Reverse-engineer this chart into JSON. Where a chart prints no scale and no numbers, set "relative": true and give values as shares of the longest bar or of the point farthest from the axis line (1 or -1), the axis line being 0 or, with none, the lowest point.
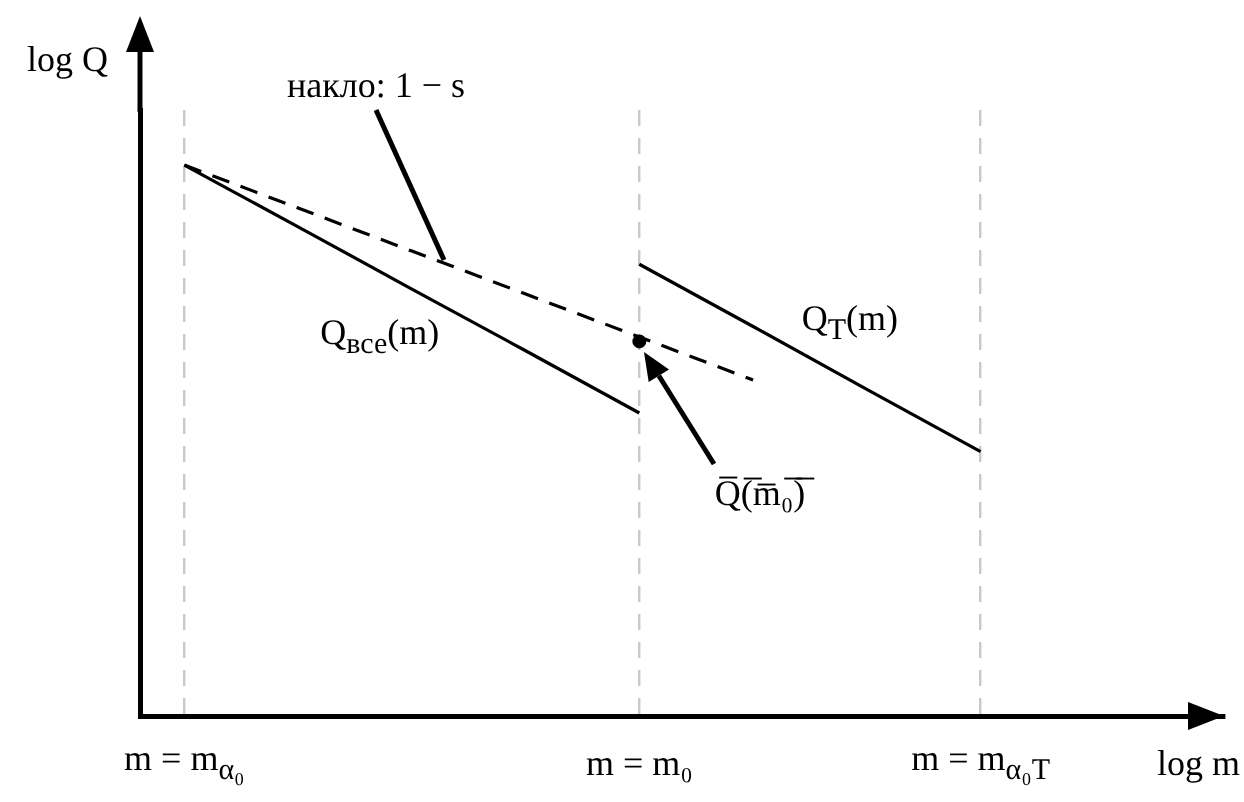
{
  "chart_data": {
    "type": "line",
    "xlabel": "log m",
    "ylabel": "log Q",
    "relative": true,
    "grid": "x",
    "categories": [
      "m = m$_{α₀}$",
      null,
      null,
      null,
      "m = m₀",
      null,
      null,
      "m = m$_{α₀T}$"
    ],
    "series": [
      {
        "name": "Q$_{все}$(m)",
        "color": "#000000",
        "values": [
          1,
          0.888,
          0.775,
          0.663,
          0.55,
          null,
          null,
          null
        ],
        "marker": "none",
        "line_style": "solid"
      },
      {
        "color": "#000000",
        "values": [
          1,
          0.922,
          0.844,
          0.766,
          0.688,
          0.61,
          null,
          null
        ],
        "marker": "none",
        "line_style": "dashed"
      },
      {
        "name": "Q$_{T}$(m)",
        "color": "#000000",
        "values": [
          null,
          null,
          null,
          null,
          0.82,
          0.707,
          0.593,
          0.48
        ],
        "marker": "none",
        "line_style": "solid"
      },
      {
        "type": "scatter",
        "color": "#000000",
        "values": [
          null,
          null,
          null,
          null,
          0.68,
          null,
          null,
          null
        ],
        "marker": "circle"
      }
    ],
    "annotations": [
      "накло: 1 − s",
      "Q̅(̅m̅₀̅)̅"
    ]
  }
}
